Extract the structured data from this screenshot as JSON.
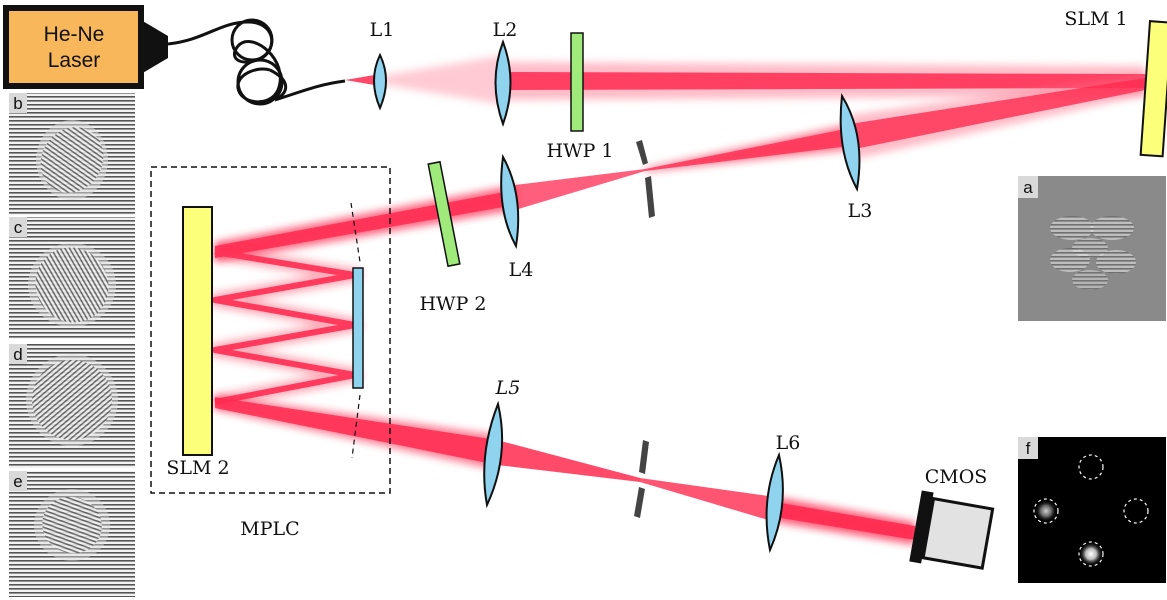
{
  "laser": {
    "line1": "He-Ne",
    "line2": "Laser",
    "fill": "#f7b75a"
  },
  "lenses": {
    "l1": "L1",
    "l2": "L2",
    "l3": "L3",
    "l4": "L4",
    "l5": "L5",
    "l6": "L6"
  },
  "waveplates": {
    "hwp1": "HWP 1",
    "hwp2": "HWP 2"
  },
  "slm": {
    "slm1": "SLM 1",
    "slm2": "SLM 2",
    "fill": "#fbff7a"
  },
  "mplc": {
    "label": "MPLC"
  },
  "camera": {
    "label": "CMOS"
  },
  "panels": {
    "a": "a",
    "b": "b",
    "c": "c",
    "d": "d",
    "e": "e",
    "f": "f"
  },
  "colors": {
    "beam": "#ff2a50",
    "lens": "#8fd3ee",
    "waveplate": "#9fea7a",
    "mirror": "#8fd3ee"
  }
}
